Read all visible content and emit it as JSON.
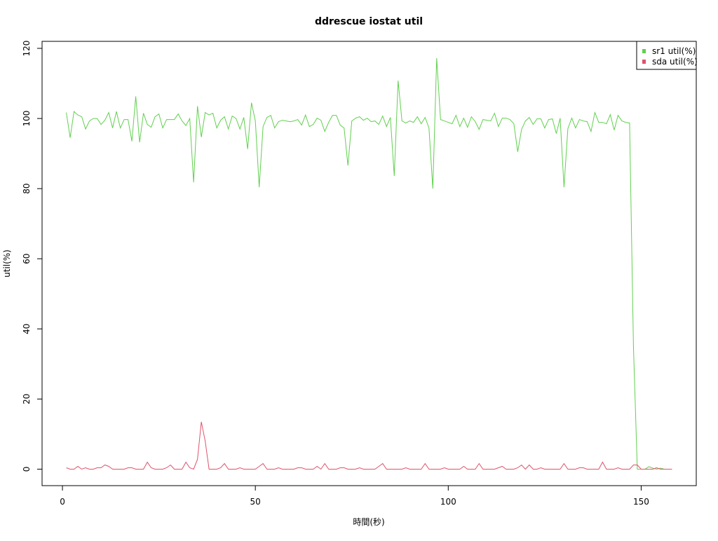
{
  "chart_data": {
    "type": "line",
    "title": "ddrescue iostat util",
    "x_label": "時間(秒)",
    "y_label": "util(%)",
    "x": [
      1,
      2,
      3,
      4,
      5,
      6,
      7,
      8,
      9,
      10,
      11,
      12,
      13,
      14,
      15,
      16,
      17,
      18,
      19,
      20,
      21,
      22,
      23,
      24,
      25,
      26,
      27,
      28,
      29,
      30,
      31,
      32,
      33,
      34,
      35,
      36,
      37,
      38,
      39,
      40,
      41,
      42,
      43,
      44,
      45,
      46,
      47,
      48,
      49,
      50,
      51,
      52,
      53,
      54,
      55,
      56,
      57,
      58,
      59,
      60,
      61,
      62,
      63,
      64,
      65,
      66,
      67,
      68,
      69,
      70,
      71,
      72,
      73,
      74,
      75,
      76,
      77,
      78,
      79,
      80,
      81,
      82,
      83,
      84,
      85,
      86,
      87,
      88,
      89,
      90,
      91,
      92,
      93,
      94,
      95,
      96,
      97,
      98,
      99,
      100,
      101,
      102,
      103,
      104,
      105,
      106,
      107,
      108,
      109,
      110,
      111,
      112,
      113,
      114,
      115,
      116,
      117,
      118,
      119,
      120,
      121,
      122,
      123,
      124,
      125,
      126,
      127,
      128,
      129,
      130,
      131,
      132,
      133,
      134,
      135,
      136,
      137,
      138,
      139,
      140,
      141,
      142,
      143,
      144,
      145,
      146,
      147,
      148,
      149,
      150,
      151,
      152,
      153,
      154,
      155,
      156,
      157,
      158
    ],
    "series": [
      {
        "name": "sr1 util(%)",
        "color": "#61d04f",
        "values": [
          101.7,
          94.5,
          102,
          101,
          100.5,
          97,
          99.3,
          100,
          100,
          98.3,
          99.5,
          101.7,
          97.3,
          102,
          97.3,
          99.7,
          99.7,
          93.5,
          106.3,
          93.2,
          101.5,
          98.3,
          97.5,
          100.5,
          101.3,
          97.3,
          99.7,
          99.7,
          99.7,
          101.3,
          99.3,
          98,
          100,
          81.8,
          103.5,
          94.7,
          101.7,
          101,
          101.5,
          97.3,
          99.5,
          100.5,
          97,
          100.7,
          100,
          97,
          100.3,
          91.3,
          104.5,
          99.3,
          80.4,
          97.7,
          100.3,
          100.9,
          97.3,
          99.1,
          99.5,
          99.3,
          99.1,
          99.3,
          99.7,
          98.1,
          101,
          97.7,
          98.3,
          100.1,
          99.5,
          96.3,
          98.9,
          100.9,
          100.9,
          98.1,
          97.3,
          86.6,
          99.3,
          100.1,
          100.5,
          99.5,
          100.1,
          99.1,
          99.3,
          98.3,
          100.7,
          97.7,
          100.3,
          83.6,
          110.8,
          99.3,
          98.7,
          99.3,
          98.9,
          100.5,
          98.5,
          100.3,
          97.3,
          80,
          117.2,
          99.7,
          99.3,
          98.9,
          98.5,
          100.9,
          97.7,
          100.1,
          97.5,
          100.5,
          99.1,
          96.9,
          99.7,
          99.5,
          99.3,
          101.5,
          97.7,
          100.1,
          100.1,
          99.7,
          98.5,
          90.5,
          96.9,
          99.3,
          100.3,
          98.3,
          99.9,
          99.9,
          97.3,
          99.7,
          99.9,
          95.7,
          100.1,
          80.4,
          97.1,
          100.1,
          97.3,
          99.7,
          99.3,
          99.1,
          96.3,
          101.7,
          98.9,
          98.9,
          98.5,
          101.1,
          96.7,
          100.9,
          99.3,
          98.9,
          98.7,
          35,
          0,
          0,
          0,
          0.7,
          0.3,
          0,
          0.3,
          0,
          0,
          0
        ]
      },
      {
        "name": "sda util(%)",
        "color": "#df536b",
        "values": [
          0.4,
          0,
          0,
          0.8,
          0,
          0.4,
          0,
          0,
          0.4,
          0.4,
          1.2,
          0.8,
          0,
          0,
          0,
          0,
          0.4,
          0.4,
          0,
          0,
          0,
          2,
          0.4,
          0,
          0,
          0,
          0.4,
          1.2,
          0,
          0,
          0,
          2,
          0.4,
          0,
          2.8,
          13.5,
          8,
          0,
          0,
          0,
          0.4,
          1.6,
          0,
          0,
          0,
          0.4,
          0,
          0,
          0,
          0,
          0.8,
          1.6,
          0,
          0,
          0,
          0.4,
          0,
          0,
          0,
          0,
          0.4,
          0.4,
          0,
          0,
          0,
          0.8,
          0,
          1.6,
          0,
          0,
          0,
          0.4,
          0.4,
          0,
          0,
          0,
          0.4,
          0,
          0,
          0,
          0,
          0.8,
          1.6,
          0,
          0,
          0,
          0,
          0,
          0.4,
          0,
          0,
          0,
          0,
          1.6,
          0,
          0,
          0,
          0,
          0.4,
          0,
          0,
          0,
          0,
          0.8,
          0,
          0,
          0,
          1.6,
          0,
          0,
          0,
          0,
          0.4,
          0.8,
          0,
          0,
          0,
          0.4,
          1.2,
          0,
          1.2,
          0,
          0,
          0.4,
          0,
          0,
          0,
          0,
          0,
          1.6,
          0,
          0,
          0,
          0.4,
          0.4,
          0,
          0,
          0,
          0,
          2,
          0,
          0,
          0,
          0.4,
          0,
          0,
          0,
          1.2,
          1.2,
          0,
          0,
          0,
          0,
          0.4,
          0,
          0,
          0,
          0
        ]
      }
    ],
    "xlim": [
      -5.28,
      164.28
    ],
    "xticks": [
      0,
      50,
      100,
      150
    ],
    "ylim": [
      -4.7,
      122
    ],
    "yticks": [
      0,
      20,
      40,
      60,
      80,
      100,
      120
    ],
    "legend": "top-right"
  }
}
